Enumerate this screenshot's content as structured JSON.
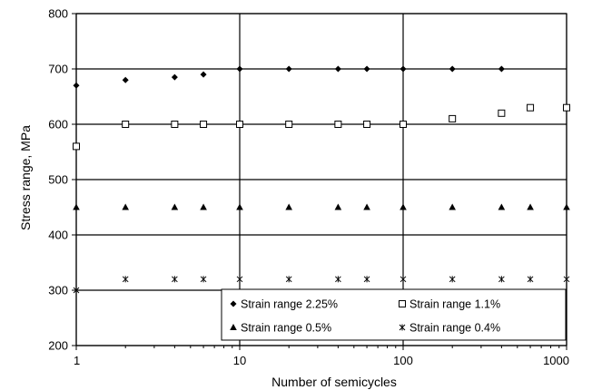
{
  "chart_data": {
    "type": "scatter",
    "xscale": "log",
    "xlim": [
      1,
      1000
    ],
    "ylim": [
      200,
      800
    ],
    "xticks": [
      "1",
      "10",
      "100",
      "1000"
    ],
    "yticks": [
      "200",
      "300",
      "400",
      "500",
      "600",
      "700",
      "800"
    ],
    "xlabel": "Number of semicycles",
    "ylabel": "Stress range, MPa",
    "grid": true,
    "legend_position": "bottom-right",
    "series": [
      {
        "name": "Strain range 2.25%",
        "marker": "diamond-filled",
        "x": [
          1,
          2,
          4,
          6,
          10,
          20,
          40,
          60,
          100,
          200,
          400
        ],
        "y": [
          670,
          680,
          685,
          690,
          700,
          700,
          700,
          700,
          700,
          700,
          700
        ]
      },
      {
        "name": "Strain range 1.1%",
        "marker": "square-open",
        "x": [
          1,
          2,
          4,
          6,
          10,
          20,
          40,
          60,
          100,
          200,
          400,
          600,
          1000
        ],
        "y": [
          560,
          600,
          600,
          600,
          600,
          600,
          600,
          600,
          600,
          610,
          620,
          630,
          630
        ]
      },
      {
        "name": "Strain range 0.5%",
        "marker": "triangle-filled",
        "x": [
          1,
          2,
          4,
          6,
          10,
          20,
          40,
          60,
          100,
          200,
          400,
          600,
          1000
        ],
        "y": [
          450,
          450,
          450,
          450,
          450,
          450,
          450,
          450,
          450,
          450,
          450,
          450,
          450
        ]
      },
      {
        "name": "Strain range 0.4%",
        "marker": "asterisk",
        "x": [
          1,
          2,
          4,
          6,
          10,
          20,
          40,
          60,
          100,
          200,
          400,
          600,
          1000
        ],
        "y": [
          300,
          320,
          320,
          320,
          320,
          320,
          320,
          320,
          320,
          320,
          320,
          320,
          320
        ]
      }
    ],
    "colors": {
      "marker": "#000000",
      "grid": "#000000",
      "background": "#ffffff"
    }
  }
}
